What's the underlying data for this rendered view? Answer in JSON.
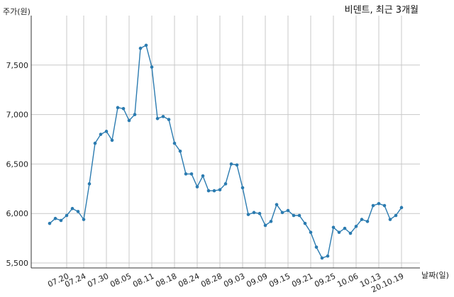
{
  "chart_data": {
    "type": "line",
    "title": "비덴트, 최근 3개월",
    "xlabel": "날짜(일)",
    "ylabel": "주가(원)",
    "ylim": [
      5450,
      8000
    ],
    "grid": true,
    "yticks": [
      5500,
      6000,
      6500,
      7000,
      7500
    ],
    "ytick_labels": [
      "5,500",
      "6,000",
      "6,500",
      "7,000",
      "7,500"
    ],
    "xticks": [
      {
        "label": "07.20",
        "index": 3
      },
      {
        "label": "07.24",
        "index": 6
      },
      {
        "label": "07.30",
        "index": 10
      },
      {
        "label": "08.05",
        "index": 14
      },
      {
        "label": "08.11",
        "index": 18
      },
      {
        "label": "08.18",
        "index": 22
      },
      {
        "label": "08.24",
        "index": 26
      },
      {
        "label": "08.28",
        "index": 30
      },
      {
        "label": "09.03",
        "index": 34
      },
      {
        "label": "09.09",
        "index": 38
      },
      {
        "label": "09.15",
        "index": 42
      },
      {
        "label": "09.21",
        "index": 46
      },
      {
        "label": "09.25",
        "index": 50
      },
      {
        "label": "10.06",
        "index": 54
      },
      {
        "label": "10.13",
        "index": 58
      },
      {
        "label": "20.10.19",
        "index": 62
      }
    ],
    "series": [
      {
        "color": "#2b7bb0",
        "values": [
          5900,
          5950,
          5930,
          5980,
          6050,
          6020,
          5940,
          6300,
          6710,
          6800,
          6830,
          6740,
          7070,
          7060,
          6940,
          7000,
          7670,
          7700,
          7480,
          6960,
          6980,
          6950,
          6710,
          6630,
          6400,
          6400,
          6270,
          6380,
          6230,
          6230,
          6240,
          6300,
          6500,
          6490,
          6260,
          5990,
          6010,
          6000,
          5880,
          5920,
          6090,
          6010,
          6030,
          5980,
          5980,
          5900,
          5810,
          5660,
          5550,
          5570,
          5860,
          5810,
          5850,
          5800,
          5870,
          5940,
          5920,
          6080,
          6100,
          6080,
          5940,
          5980,
          6060
        ]
      }
    ]
  }
}
